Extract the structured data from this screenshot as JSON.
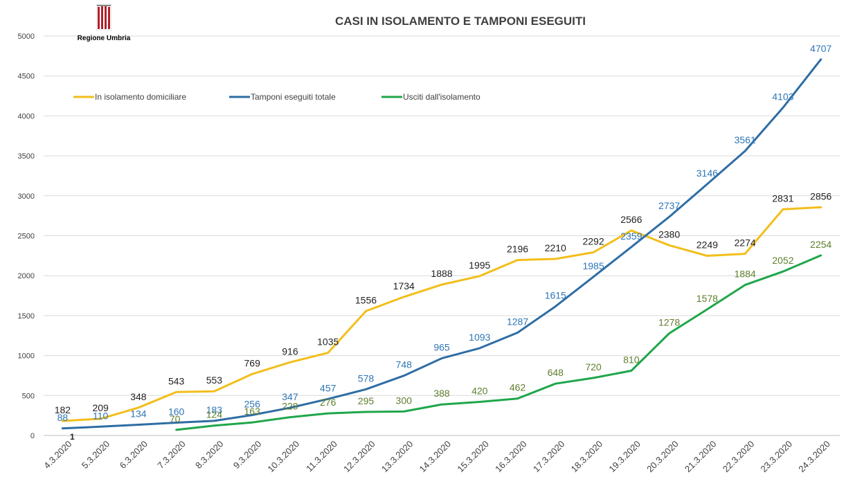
{
  "logo": {
    "text": "Regione Umbria"
  },
  "chart_data": {
    "type": "line",
    "title": "CASI IN ISOLAMENTO E TAMPONI ESEGUITI",
    "xlabel": "",
    "ylabel": "",
    "ylim": [
      0,
      5000
    ],
    "yticks": [
      0,
      500,
      1000,
      1500,
      2000,
      2500,
      3000,
      3500,
      4000,
      4500,
      5000
    ],
    "grid": true,
    "legend_position": "top-left",
    "categories": [
      "4.3.2020",
      "5.3.2020",
      "6.3.2020",
      "7.3.2020",
      "8.3.2020",
      "9.3.2020",
      "10.3.2020",
      "11.3.2020",
      "12.3.2020",
      "13.3.2020",
      "14.3.2020",
      "15.3.2020",
      "16.3.2020",
      "17.3.2020",
      "18.3.2020",
      "19.3.2020",
      "20.3.2020",
      "21.3.2020",
      "22.3.2020",
      "23.3.2020",
      "24.3.2020"
    ],
    "series": [
      {
        "name": "In isolamento domiciliare",
        "color": "#F2BE1A",
        "label_color": "#222222",
        "values": [
          182,
          209,
          348,
          543,
          553,
          769,
          916,
          1035,
          1556,
          1734,
          1888,
          1995,
          2196,
          2210,
          2292,
          2566,
          2380,
          2249,
          2274,
          2831,
          2856
        ]
      },
      {
        "name": "Tamponi eseguiti totale",
        "color": "#2E6DA4",
        "label_color": "#2E75B6",
        "values": [
          88,
          110,
          134,
          160,
          183,
          256,
          347,
          457,
          578,
          748,
          965,
          1093,
          1287,
          1615,
          1985,
          2359,
          2737,
          3146,
          3561,
          4103,
          4707
        ]
      },
      {
        "name": "Usciti dall'isolamento",
        "color": "#1FA64A",
        "label_color": "#5E7E2C",
        "values": [
          null,
          null,
          null,
          70,
          124,
          163,
          229,
          276,
          295,
          300,
          388,
          420,
          462,
          648,
          720,
          810,
          1278,
          1578,
          1884,
          2052,
          2254
        ]
      }
    ],
    "annotations": [
      {
        "text": "1",
        "category": "4.3.2020"
      }
    ]
  }
}
